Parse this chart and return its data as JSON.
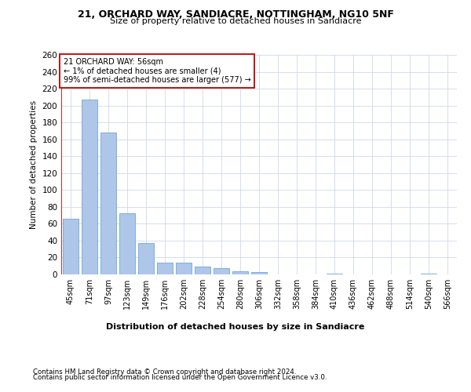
{
  "title1": "21, ORCHARD WAY, SANDIACRE, NOTTINGHAM, NG10 5NF",
  "title2": "Size of property relative to detached houses in Sandiacre",
  "dist_label": "Distribution of detached houses by size in Sandiacre",
  "ylabel": "Number of detached properties",
  "footer1": "Contains HM Land Registry data © Crown copyright and database right 2024.",
  "footer2": "Contains public sector information licensed under the Open Government Licence v3.0.",
  "annotation_title": "21 ORCHARD WAY: 56sqm",
  "annotation_line2": "← 1% of detached houses are smaller (4)",
  "annotation_line3": "99% of semi-detached houses are larger (577) →",
  "bar_color": "#aec6e8",
  "bar_edge_color": "#5b9bd5",
  "highlight_color": "#c00000",
  "categories": [
    "45sqm",
    "71sqm",
    "97sqm",
    "123sqm",
    "149sqm",
    "176sqm",
    "202sqm",
    "228sqm",
    "254sqm",
    "280sqm",
    "306sqm",
    "332sqm",
    "358sqm",
    "384sqm",
    "410sqm",
    "436sqm",
    "462sqm",
    "488sqm",
    "514sqm",
    "540sqm",
    "566sqm"
  ],
  "values": [
    66,
    207,
    168,
    72,
    37,
    14,
    14,
    9,
    7,
    4,
    3,
    0,
    0,
    0,
    1,
    0,
    0,
    0,
    0,
    1,
    0
  ],
  "ylim": [
    0,
    260
  ],
  "yticks": [
    0,
    20,
    40,
    60,
    80,
    100,
    120,
    140,
    160,
    180,
    200,
    220,
    240,
    260
  ],
  "background_color": "#ffffff",
  "grid_color": "#d0d8e8"
}
